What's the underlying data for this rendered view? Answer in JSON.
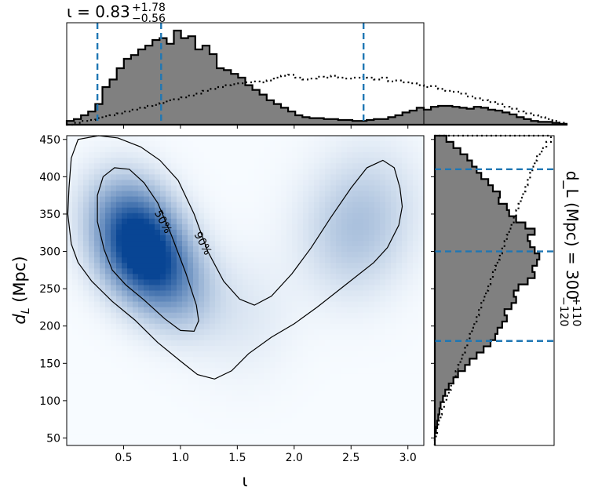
{
  "chart_data": [
    {
      "panel": "joint",
      "type": "heatmap",
      "xlabel": "ι",
      "ylabel": "d_L (Mpc)",
      "xlim": [
        0.0,
        3.14
      ],
      "ylim": [
        40,
        455
      ],
      "x_ticks": [
        "0.5",
        "1.0",
        "1.5",
        "2.0",
        "2.5",
        "3.0"
      ],
      "y_ticks": [
        "50",
        "100",
        "150",
        "200",
        "250",
        "300",
        "350",
        "400",
        "450"
      ],
      "colormap": "Blues",
      "density_modes": [
        {
          "x": 0.68,
          "y": 295,
          "weight": 1.0
        },
        {
          "x": 0.55,
          "y": 345,
          "weight": 0.55
        },
        {
          "x": 0.95,
          "y": 250,
          "weight": 0.35
        },
        {
          "x": 2.5,
          "y": 320,
          "weight": 0.22
        },
        {
          "x": 2.7,
          "y": 370,
          "weight": 0.12
        },
        {
          "x": 1.55,
          "y": 215,
          "weight": 0.08
        }
      ],
      "contours": [
        {
          "label": "50%",
          "label_at": {
            "x": 0.85,
            "y": 340
          },
          "points": [
            [
              0.27,
              375
            ],
            [
              0.32,
              400
            ],
            [
              0.42,
              412
            ],
            [
              0.55,
              410
            ],
            [
              0.68,
              392
            ],
            [
              0.8,
              365
            ],
            [
              0.92,
              322
            ],
            [
              1.05,
              270
            ],
            [
              1.14,
              228
            ],
            [
              1.16,
              207
            ],
            [
              1.12,
              193
            ],
            [
              1.0,
              194
            ],
            [
              0.86,
              210
            ],
            [
              0.68,
              235
            ],
            [
              0.52,
              255
            ],
            [
              0.4,
              275
            ],
            [
              0.33,
              302
            ],
            [
              0.27,
              340
            ]
          ]
        },
        {
          "label": "90%",
          "label_at": {
            "x": 1.2,
            "y": 311
          },
          "points": [
            [
              0.02,
              385
            ],
            [
              0.04,
              425
            ],
            [
              0.1,
              450
            ],
            [
              0.28,
              455
            ],
            [
              0.45,
              452
            ],
            [
              0.65,
              440
            ],
            [
              0.82,
              422
            ],
            [
              0.98,
              395
            ],
            [
              1.12,
              350
            ],
            [
              1.24,
              300
            ],
            [
              1.38,
              260
            ],
            [
              1.52,
              236
            ],
            [
              1.65,
              228
            ],
            [
              1.8,
              240
            ],
            [
              1.98,
              270
            ],
            [
              2.15,
              305
            ],
            [
              2.32,
              345
            ],
            [
              2.5,
              385
            ],
            [
              2.64,
              412
            ],
            [
              2.78,
              422
            ],
            [
              2.88,
              412
            ],
            [
              2.93,
              385
            ],
            [
              2.95,
              360
            ],
            [
              2.92,
              335
            ],
            [
              2.82,
              305
            ],
            [
              2.7,
              285
            ],
            [
              2.45,
              255
            ],
            [
              2.2,
              225
            ],
            [
              2.0,
              203
            ],
            [
              1.8,
              185
            ],
            [
              1.6,
              163
            ],
            [
              1.45,
              140
            ],
            [
              1.3,
              129
            ],
            [
              1.15,
              135
            ],
            [
              1.0,
              153
            ],
            [
              0.8,
              178
            ],
            [
              0.6,
              208
            ],
            [
              0.4,
              233
            ],
            [
              0.22,
              260
            ],
            [
              0.1,
              285
            ],
            [
              0.04,
              310
            ],
            [
              0.01,
              350
            ]
          ]
        }
      ]
    },
    {
      "panel": "top-marginal",
      "type": "histogram",
      "title": "ι = 0.83",
      "title_sup": "+1.78",
      "title_sub": "−0.56",
      "bin_start": 0.0,
      "bin_width": 0.0628,
      "posterior": [
        0.04,
        0.06,
        0.1,
        0.14,
        0.22,
        0.4,
        0.48,
        0.6,
        0.7,
        0.74,
        0.8,
        0.84,
        0.9,
        0.92,
        0.86,
        1.0,
        0.92,
        0.94,
        0.8,
        0.84,
        0.75,
        0.6,
        0.58,
        0.54,
        0.5,
        0.42,
        0.37,
        0.32,
        0.26,
        0.22,
        0.18,
        0.14,
        0.1,
        0.08,
        0.07,
        0.07,
        0.06,
        0.06,
        0.05,
        0.05,
        0.04,
        0.04,
        0.05,
        0.06,
        0.06,
        0.08,
        0.1,
        0.13,
        0.15,
        0.18,
        0.16,
        0.19,
        0.2,
        0.2,
        0.19,
        0.18,
        0.17,
        0.19,
        0.18,
        0.16,
        0.15,
        0.13,
        0.11,
        0.08,
        0.06,
        0.04,
        0.03,
        0.03,
        0.02,
        0.01
      ],
      "prior": [
        0.0,
        0.02,
        0.04,
        0.05,
        0.07,
        0.09,
        0.1,
        0.12,
        0.14,
        0.16,
        0.18,
        0.2,
        0.21,
        0.23,
        0.26,
        0.27,
        0.29,
        0.31,
        0.33,
        0.36,
        0.38,
        0.4,
        0.42,
        0.43,
        0.44,
        0.45,
        0.46,
        0.45,
        0.47,
        0.5,
        0.52,
        0.53,
        0.5,
        0.48,
        0.49,
        0.51,
        0.5,
        0.52,
        0.5,
        0.49,
        0.5,
        0.51,
        0.5,
        0.48,
        0.5,
        0.46,
        0.47,
        0.45,
        0.44,
        0.42,
        0.4,
        0.41,
        0.38,
        0.36,
        0.35,
        0.33,
        0.3,
        0.28,
        0.26,
        0.24,
        0.22,
        0.19,
        0.17,
        0.14,
        0.12,
        0.1,
        0.08,
        0.06,
        0.04,
        0.02
      ],
      "dashed_lines": [
        0.27,
        0.83,
        2.61
      ]
    },
    {
      "panel": "right-marginal",
      "type": "histogram",
      "orientation": "horizontal",
      "label": "d_L (Mpc) = 300",
      "label_sup": "+110",
      "label_sub": "−120",
      "bin_start": 40,
      "bin_width": 8.3,
      "posterior": [
        0.0,
        0.0,
        0.01,
        0.02,
        0.03,
        0.04,
        0.05,
        0.07,
        0.09,
        0.12,
        0.16,
        0.2,
        0.26,
        0.3,
        0.36,
        0.42,
        0.48,
        0.52,
        0.54,
        0.58,
        0.62,
        0.6,
        0.66,
        0.7,
        0.68,
        0.72,
        0.8,
        0.86,
        0.84,
        0.88,
        0.9,
        0.86,
        0.82,
        0.8,
        0.86,
        0.78,
        0.7,
        0.64,
        0.62,
        0.55,
        0.56,
        0.5,
        0.46,
        0.4,
        0.36,
        0.32,
        0.28,
        0.22,
        0.16,
        0.1
      ],
      "prior": [
        0.0,
        0.01,
        0.02,
        0.03,
        0.05,
        0.06,
        0.08,
        0.1,
        0.12,
        0.14,
        0.16,
        0.18,
        0.2,
        0.22,
        0.24,
        0.26,
        0.28,
        0.3,
        0.32,
        0.34,
        0.36,
        0.38,
        0.4,
        0.42,
        0.44,
        0.46,
        0.48,
        0.5,
        0.52,
        0.54,
        0.56,
        0.58,
        0.6,
        0.62,
        0.64,
        0.66,
        0.68,
        0.7,
        0.72,
        0.74,
        0.76,
        0.78,
        0.8,
        0.82,
        0.84,
        0.86,
        0.88,
        0.92,
        0.96,
        1.0
      ],
      "dashed_lines": [
        180,
        300,
        410
      ]
    }
  ]
}
